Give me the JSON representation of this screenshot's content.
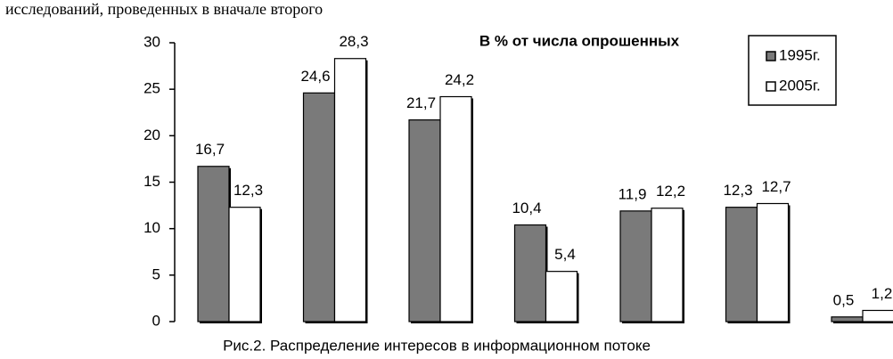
{
  "header_text": "исследований, проведенных в вначале второго",
  "chart_data": {
    "type": "bar",
    "title": "В % от числа опрошенных",
    "caption": "Рис.2. Распределение интересов в информационном потоке",
    "categories": [
      null,
      null,
      null,
      null,
      null,
      null,
      null
    ],
    "series": [
      {
        "name": "1995г.",
        "color": "#7a7a7a",
        "values": [
          16.7,
          24.6,
          21.7,
          10.4,
          11.9,
          12.3,
          0.5
        ],
        "value_labels": [
          "16,7",
          "24,6",
          "21,7",
          "10,4",
          "11,9",
          "12,3",
          "0,5"
        ]
      },
      {
        "name": "2005г.",
        "color": "#ffffff",
        "values": [
          12.3,
          28.3,
          24.2,
          5.4,
          12.2,
          12.7,
          1.2
        ],
        "value_labels": [
          "12,3",
          "28,3",
          "24,2",
          "5,4",
          "12,2",
          "12,7",
          "1,2"
        ]
      }
    ],
    "ylim": [
      0,
      30
    ],
    "yticks": [
      0,
      5,
      10,
      15,
      20,
      25,
      30
    ],
    "grid": false,
    "legend": "top-right"
  }
}
